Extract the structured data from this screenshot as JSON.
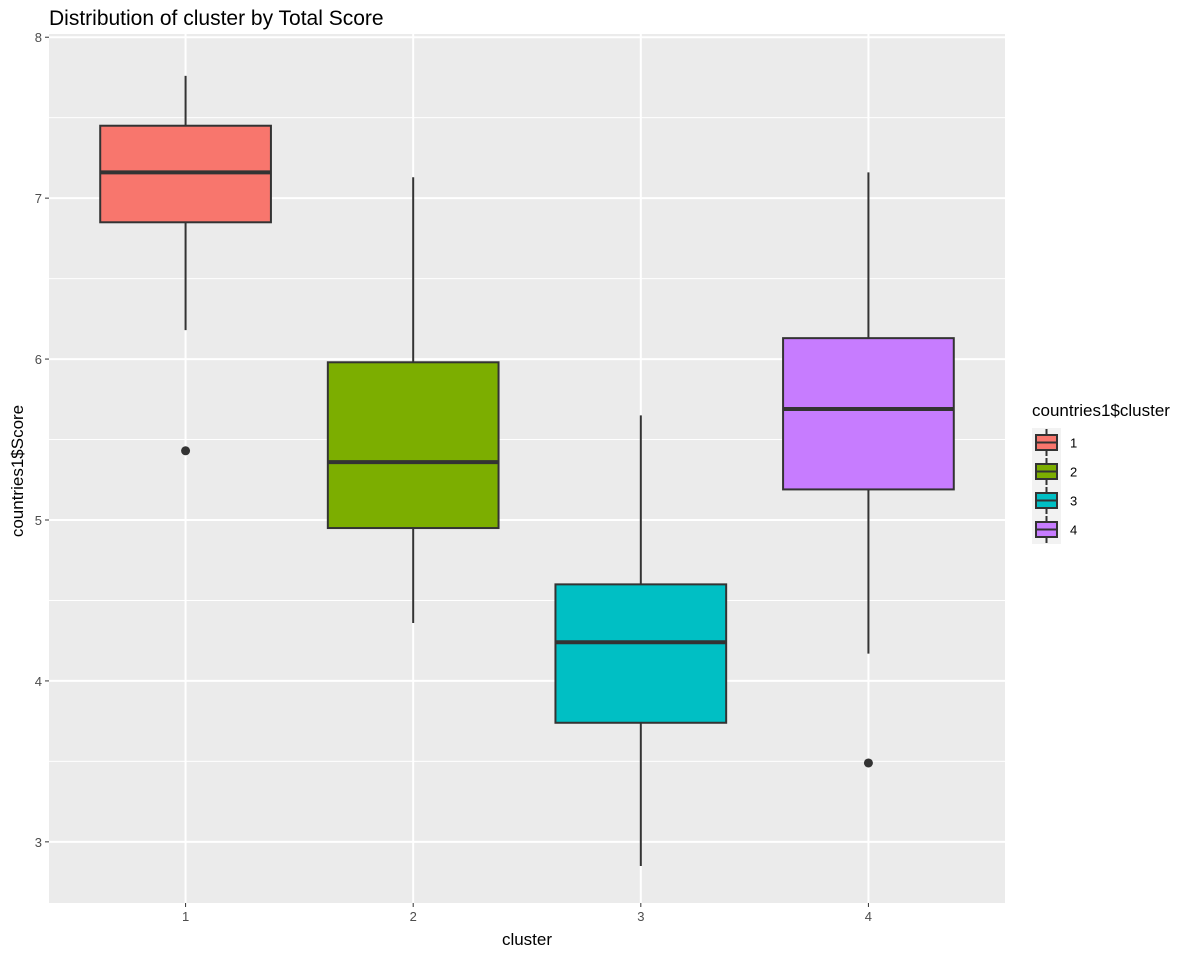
{
  "chart_data": {
    "type": "boxplot",
    "title": "Distribution of cluster by Total Score",
    "xlabel": "cluster",
    "ylabel": "countries1$Score",
    "categories": [
      "1",
      "2",
      "3",
      "4"
    ],
    "ylim": [
      2.62,
      8.02
    ],
    "yticks": [
      "3",
      "4",
      "5",
      "6",
      "7",
      "8"
    ],
    "grid": true,
    "legend": {
      "title": "countries1$cluster",
      "position": "right",
      "entries": [
        "1",
        "2",
        "3",
        "4"
      ]
    },
    "series": [
      {
        "name": "1",
        "color": "#F8766D",
        "whisker_low": 6.18,
        "q1": 6.85,
        "median": 7.16,
        "q3": 7.45,
        "whisker_high": 7.76,
        "outliers": [
          5.43
        ]
      },
      {
        "name": "2",
        "color": "#7CAE00",
        "whisker_low": 4.36,
        "q1": 4.95,
        "median": 5.36,
        "q3": 5.98,
        "whisker_high": 7.13,
        "outliers": []
      },
      {
        "name": "3",
        "color": "#00BFC4",
        "whisker_low": 2.85,
        "q1": 3.74,
        "median": 4.24,
        "q3": 4.6,
        "whisker_high": 5.65,
        "outliers": []
      },
      {
        "name": "4",
        "color": "#C77CFF",
        "whisker_low": 4.17,
        "q1": 5.19,
        "median": 5.69,
        "q3": 6.13,
        "whisker_high": 7.16,
        "outliers": [
          3.49
        ]
      }
    ]
  }
}
